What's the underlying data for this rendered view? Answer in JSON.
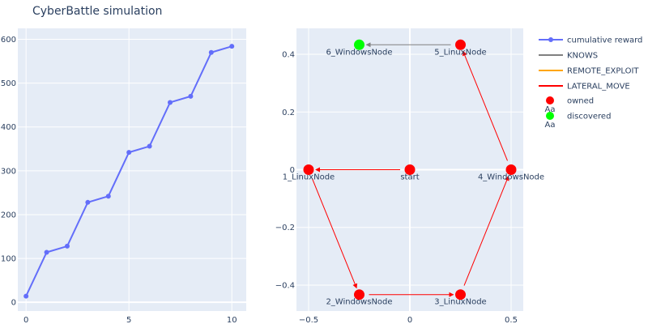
{
  "title": "CyberBattle simulation",
  "colors": {
    "reward": "#636efa",
    "knows": "#808080",
    "remote_exploit": "#ffa500",
    "lateral_move": "#ff0000",
    "owned": "#ff0000",
    "discovered": "#00ff00",
    "plot_bg": "#e5ecf6",
    "grid": "#ffffff",
    "text": "#2a3f5f"
  },
  "chart_data": [
    {
      "type": "line",
      "series": [
        {
          "name": "cumulative reward",
          "x": [
            0,
            1,
            2,
            3,
            4,
            5,
            6,
            7,
            8,
            9,
            10
          ],
          "values": [
            14,
            114,
            128,
            228,
            242,
            342,
            356,
            456,
            470,
            570,
            584
          ]
        }
      ],
      "xticks": [
        "0",
        "5",
        "10"
      ],
      "yticks": [
        "0",
        "100",
        "200",
        "300",
        "400",
        "500",
        "600"
      ],
      "xlim": [
        -0.4,
        10.7
      ],
      "ylim": [
        -20,
        625
      ]
    },
    {
      "type": "scatter",
      "nodes": [
        {
          "label": "start",
          "x": 0,
          "y": 0,
          "status": "owned"
        },
        {
          "label": "1_LinuxNode",
          "x": -0.5,
          "y": 0,
          "status": "owned"
        },
        {
          "label": "2_WindowsNode",
          "x": -0.25,
          "y": -0.433,
          "status": "owned"
        },
        {
          "label": "3_LinuxNode",
          "x": 0.25,
          "y": -0.433,
          "status": "owned"
        },
        {
          "label": "4_WindowsNode",
          "x": 0.5,
          "y": 0,
          "status": "owned"
        },
        {
          "label": "5_LinuxNode",
          "x": 0.25,
          "y": 0.433,
          "status": "owned"
        },
        {
          "label": "6_WindowsNode",
          "x": -0.25,
          "y": 0.433,
          "status": "discovered"
        }
      ],
      "edges": [
        {
          "from": "start",
          "to": "1_LinuxNode",
          "type": "LATERAL_MOVE"
        },
        {
          "from": "1_LinuxNode",
          "to": "2_WindowsNode",
          "type": "LATERAL_MOVE"
        },
        {
          "from": "2_WindowsNode",
          "to": "3_LinuxNode",
          "type": "LATERAL_MOVE"
        },
        {
          "from": "3_LinuxNode",
          "to": "4_WindowsNode",
          "type": "LATERAL_MOVE"
        },
        {
          "from": "4_WindowsNode",
          "to": "5_LinuxNode",
          "type": "LATERAL_MOVE"
        },
        {
          "from": "5_LinuxNode",
          "to": "6_WindowsNode",
          "type": "KNOWS"
        }
      ],
      "xticks": [
        "−0.5",
        "0",
        "0.5"
      ],
      "xtick_values": [
        -0.5,
        0,
        0.5
      ],
      "yticks": [
        "−0.4",
        "−0.2",
        "0",
        "0.2",
        "0.4"
      ],
      "ytick_values": [
        -0.4,
        -0.2,
        0,
        0.2,
        0.4
      ],
      "xlim": [
        -0.56,
        0.56
      ],
      "ylim": [
        -0.49,
        0.49
      ]
    }
  ],
  "legend": {
    "placement": "right",
    "items": [
      {
        "label": "cumulative reward",
        "kind": "line-marker",
        "color": "#636efa"
      },
      {
        "label": "KNOWS",
        "kind": "line",
        "color": "#808080"
      },
      {
        "label": "REMOTE_EXPLOIT",
        "kind": "line",
        "color": "#ffa500"
      },
      {
        "label": "LATERAL_MOVE",
        "kind": "line",
        "color": "#ff0000"
      },
      {
        "label": "owned",
        "kind": "marker-text",
        "color": "#ff0000",
        "sample_text": "Aa"
      },
      {
        "label": "discovered",
        "kind": "marker-text",
        "color": "#00ff00",
        "sample_text": "Aa"
      }
    ]
  }
}
